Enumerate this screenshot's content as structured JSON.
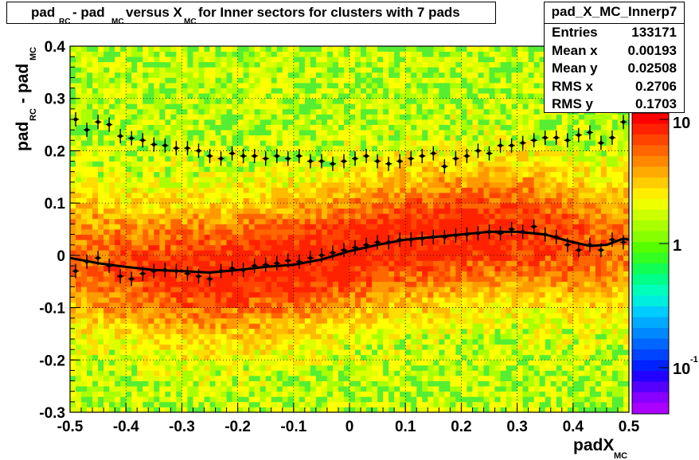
{
  "title": {
    "parts": [
      "pad",
      "RC",
      " - pad",
      "MC",
      " versus X",
      "MC",
      " for Inner sectors for clusters with 7 pads"
    ]
  },
  "stats": {
    "name": "pad_X_MC_Innerp7",
    "rows": [
      {
        "label": "Entries",
        "value": "133171"
      },
      {
        "label": "Mean x",
        "value": "0.00193"
      },
      {
        "label": "Mean y",
        "value": "0.02508"
      },
      {
        "label": "RMS x",
        "value": "0.2706"
      },
      {
        "label": "RMS y",
        "value": "0.1703"
      }
    ]
  },
  "axes": {
    "x_label": "padX",
    "x_sub": "MC",
    "y_label_parts": [
      "pad",
      "RC",
      " - pad",
      "MC"
    ]
  },
  "palette_labels": {
    "top": "10",
    "mid": "1",
    "bottom_base": "10",
    "bottom_exp": "-1"
  },
  "colors": {
    "heat_low": "#ffff00",
    "heat_mid": "#ff9900",
    "heat_high": "#ff2200",
    "profile": "#000000",
    "fit": "#000000"
  },
  "chart_data": {
    "type": "heatmap",
    "xlim": [
      -0.5,
      0.5
    ],
    "ylim": [
      -0.3,
      0.4
    ],
    "x_ticks": [
      "-0.5",
      "-0.4",
      "-0.3",
      "-0.2",
      "-0.1",
      "0",
      "0.1",
      "0.2",
      "0.3",
      "0.4",
      "0.5"
    ],
    "y_ticks": [
      "-0.3",
      "-0.2",
      "-0.1",
      "0",
      "0.1",
      "0.2",
      "0.3",
      "0.4"
    ],
    "z_scale": "log",
    "grid": true,
    "series": [
      {
        "x": [
          -0.49,
          -0.47,
          -0.45,
          -0.43,
          -0.41,
          -0.39,
          -0.37,
          -0.35,
          -0.33,
          -0.31,
          -0.29,
          -0.27,
          -0.25,
          -0.23,
          -0.21,
          -0.19,
          -0.17,
          -0.15,
          -0.13,
          -0.11,
          -0.09,
          -0.07,
          -0.05,
          -0.03,
          -0.01,
          0.01,
          0.03,
          0.05,
          0.07,
          0.09,
          0.11,
          0.13,
          0.15,
          0.17,
          0.19,
          0.21,
          0.23,
          0.25,
          0.27,
          0.29,
          0.31,
          0.33,
          0.35,
          0.37,
          0.39,
          0.41,
          0.43,
          0.45,
          0.47,
          0.49
        ],
        "values": [
          0.26,
          0.24,
          0.255,
          0.25,
          0.228,
          0.224,
          0.22,
          0.212,
          0.21,
          0.205,
          0.205,
          0.2,
          0.19,
          0.185,
          0.195,
          0.19,
          0.19,
          0.185,
          0.19,
          0.185,
          0.19,
          0.18,
          0.18,
          0.175,
          0.18,
          0.185,
          0.19,
          0.18,
          0.175,
          0.18,
          0.185,
          0.19,
          0.195,
          0.17,
          0.185,
          0.19,
          0.2,
          0.195,
          0.21,
          0.21,
          0.215,
          0.22,
          0.225,
          0.225,
          0.22,
          0.23,
          0.235,
          0.215,
          0.225,
          0.255
        ]
      },
      {
        "x": [
          -0.49,
          -0.47,
          -0.45,
          -0.43,
          -0.41,
          -0.39,
          -0.37,
          -0.35,
          -0.33,
          -0.31,
          -0.29,
          -0.27,
          -0.25,
          -0.23,
          -0.21,
          -0.19,
          -0.17,
          -0.15,
          -0.13,
          -0.11,
          -0.09,
          -0.07,
          -0.05,
          -0.03,
          -0.01,
          0.01,
          0.03,
          0.05,
          0.07,
          0.09,
          0.11,
          0.13,
          0.15,
          0.17,
          0.19,
          0.21,
          0.23,
          0.25,
          0.27,
          0.29,
          0.31,
          0.33,
          0.35,
          0.37,
          0.39,
          0.41,
          0.43,
          0.45,
          0.47,
          0.49
        ],
        "values": [
          -0.03,
          -0.012,
          -0.005,
          -0.02,
          -0.04,
          -0.045,
          -0.035,
          -0.03,
          -0.028,
          -0.03,
          -0.035,
          -0.04,
          -0.045,
          -0.03,
          -0.025,
          -0.028,
          -0.02,
          -0.018,
          -0.015,
          -0.01,
          -0.012,
          -0.005,
          0.0,
          0.005,
          0.01,
          0.015,
          0.02,
          0.025,
          0.025,
          0.03,
          0.03,
          0.032,
          0.035,
          0.035,
          0.038,
          0.04,
          0.042,
          0.045,
          0.042,
          0.05,
          0.045,
          0.055,
          0.04,
          0.035,
          0.02,
          0.01,
          0.02,
          0.01,
          0.03,
          0.025
        ]
      }
    ],
    "fit": {
      "x": [
        -0.5,
        -0.45,
        -0.4,
        -0.35,
        -0.3,
        -0.25,
        -0.2,
        -0.15,
        -0.1,
        -0.05,
        0.0,
        0.05,
        0.1,
        0.15,
        0.2,
        0.25,
        0.3,
        0.35,
        0.4,
        0.43,
        0.46,
        0.49,
        0.5
      ],
      "values": [
        -0.005,
        -0.015,
        -0.022,
        -0.028,
        -0.03,
        -0.033,
        -0.028,
        -0.022,
        -0.018,
        -0.008,
        0.008,
        0.02,
        0.03,
        0.035,
        0.04,
        0.045,
        0.045,
        0.04,
        0.025,
        0.018,
        0.02,
        0.032,
        0.03
      ]
    }
  }
}
